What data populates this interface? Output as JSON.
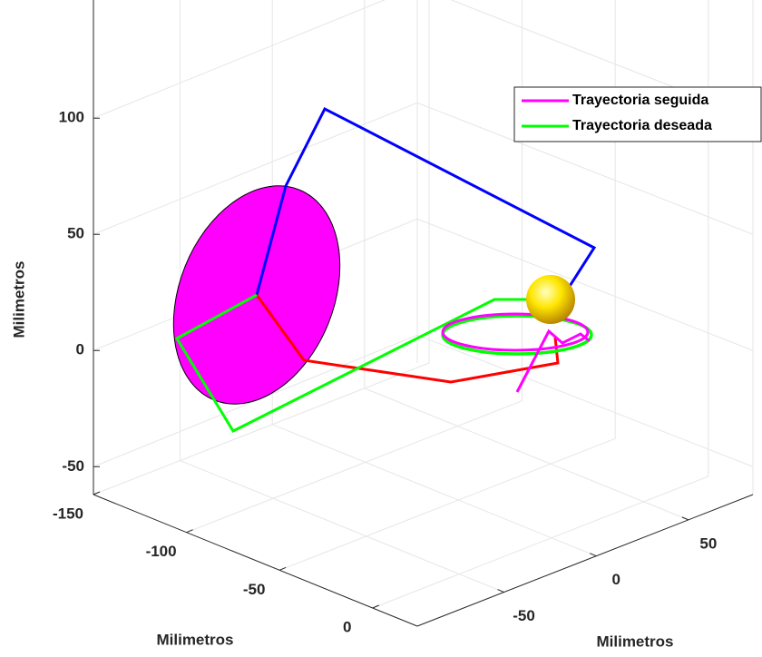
{
  "chart_data": {
    "type": "line3d",
    "xlabel": "Milimetros",
    "ylabel": "Milimetros",
    "zlabel": "Milimetros",
    "xlim": [
      -150,
      24
    ],
    "xticks": [
      -150,
      -100,
      -50,
      0
    ],
    "ylim": [
      -97,
      85
    ],
    "yticks": [
      -50,
      0,
      50
    ],
    "zlim": [
      -62,
      145
    ],
    "zticks": [
      -50,
      0,
      50,
      100
    ],
    "grid": true,
    "legend": {
      "position": "northeast",
      "entries": [
        {
          "name": "Trayectoria seguida",
          "color": "#ff00ff"
        },
        {
          "name": "Trayectoria deseada",
          "color": "#00ff00"
        }
      ]
    }
  }
}
